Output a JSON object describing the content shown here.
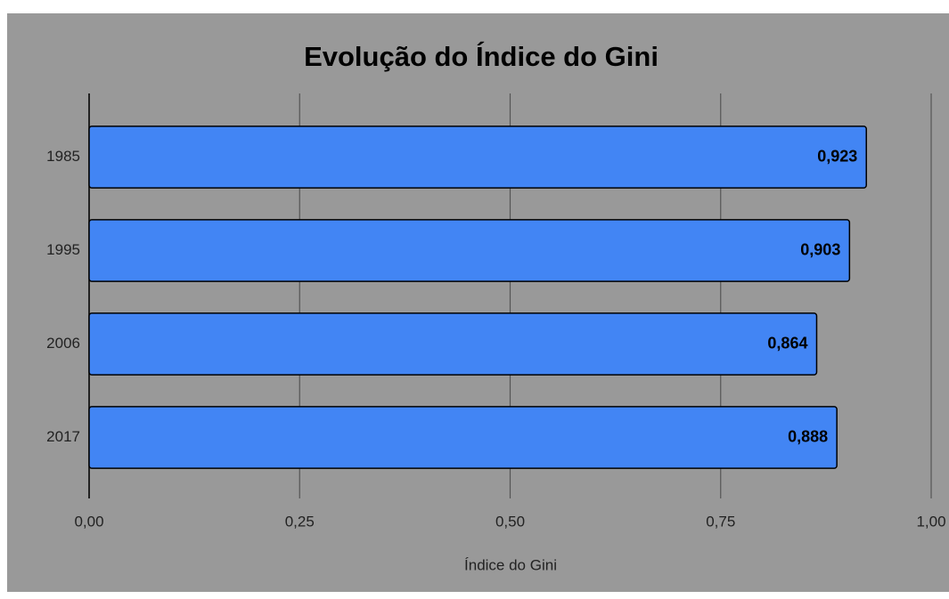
{
  "chart_data": {
    "type": "barh",
    "title": "Evolução do Índice do Gini",
    "categories": [
      "1985",
      "1995",
      "2006",
      "2017"
    ],
    "values": [
      0.923,
      0.903,
      0.864,
      0.888
    ],
    "value_labels": [
      "0,923",
      "0,903",
      "0,864",
      "0,888"
    ],
    "color": "#4285f4",
    "xlabel": "Índice do Gini",
    "xlim": [
      0,
      1
    ],
    "xticks": [
      {
        "value": 0,
        "label": "0,00"
      },
      {
        "value": 0.25,
        "label": "0,25"
      },
      {
        "value": 0.5,
        "label": "0,50"
      },
      {
        "value": 0.75,
        "label": "0,75"
      },
      {
        "value": 1,
        "label": "1,00"
      }
    ],
    "grid": true
  }
}
